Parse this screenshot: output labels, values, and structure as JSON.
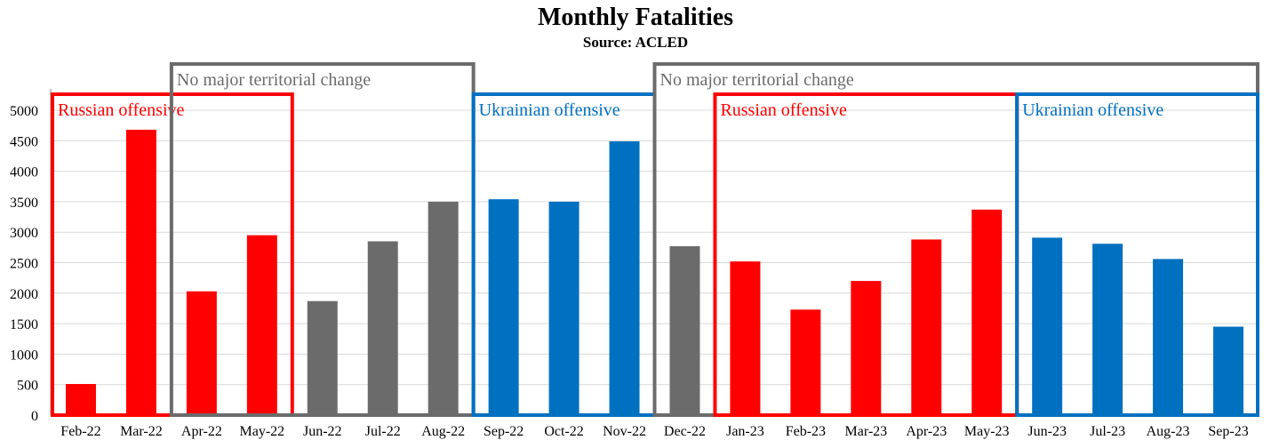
{
  "chart_data": {
    "type": "bar",
    "title": "Monthly Fatalities",
    "subtitle": "Source: ACLED",
    "xlabel": "",
    "ylabel": "",
    "ylim": [
      0,
      5000
    ],
    "yticks": [
      0,
      500,
      1000,
      1500,
      2000,
      2500,
      3000,
      3500,
      4000,
      4500,
      5000
    ],
    "grid": true,
    "categories": [
      "Feb-22",
      "Mar-22",
      "Apr-22",
      "May-22",
      "Jun-22",
      "Jul-22",
      "Aug-22",
      "Sep-22",
      "Oct-22",
      "Nov-22",
      "Dec-22",
      "Jan-23",
      "Feb-23",
      "Mar-23",
      "Apr-23",
      "May-23",
      "Jun-23",
      "Jul-23",
      "Aug-23",
      "Sep-23"
    ],
    "values": [
      510,
      4680,
      2030,
      2950,
      1870,
      2850,
      3500,
      3540,
      3500,
      4490,
      2770,
      2520,
      1730,
      2200,
      2880,
      3370,
      2910,
      2810,
      2560,
      1450
    ],
    "bar_phase": [
      "russian",
      "russian",
      "russian",
      "russian",
      "none",
      "none",
      "none",
      "ukrainian",
      "ukrainian",
      "ukrainian",
      "none",
      "russian",
      "russian",
      "russian",
      "russian",
      "russian",
      "ukrainian",
      "ukrainian",
      "ukrainian",
      "ukrainian"
    ],
    "colors": {
      "russian": "#ff0000",
      "ukrainian": "#0070c0",
      "none": "#6b6b6b",
      "grid": "#d9d9d9",
      "axis": "#888888"
    },
    "annotations": [
      {
        "label": "Russian offensive",
        "from": "Feb-22",
        "to": "May-22",
        "phase": "russian"
      },
      {
        "label": "No major territorial change",
        "from": "Apr-22",
        "to": "Aug-22",
        "phase": "none"
      },
      {
        "label": "Ukrainian offensive",
        "from": "Sep-22",
        "to": "Nov-22",
        "phase": "ukrainian"
      },
      {
        "label": "No major territorial change",
        "from": "Dec-22",
        "to": "Sep-23",
        "phase": "none"
      },
      {
        "label": "Russian offensive",
        "from": "Jan-23",
        "to": "May-23",
        "phase": "russian"
      },
      {
        "label": "Ukrainian offensive",
        "from": "Jun-23",
        "to": "Sep-23",
        "phase": "ukrainian"
      }
    ]
  }
}
